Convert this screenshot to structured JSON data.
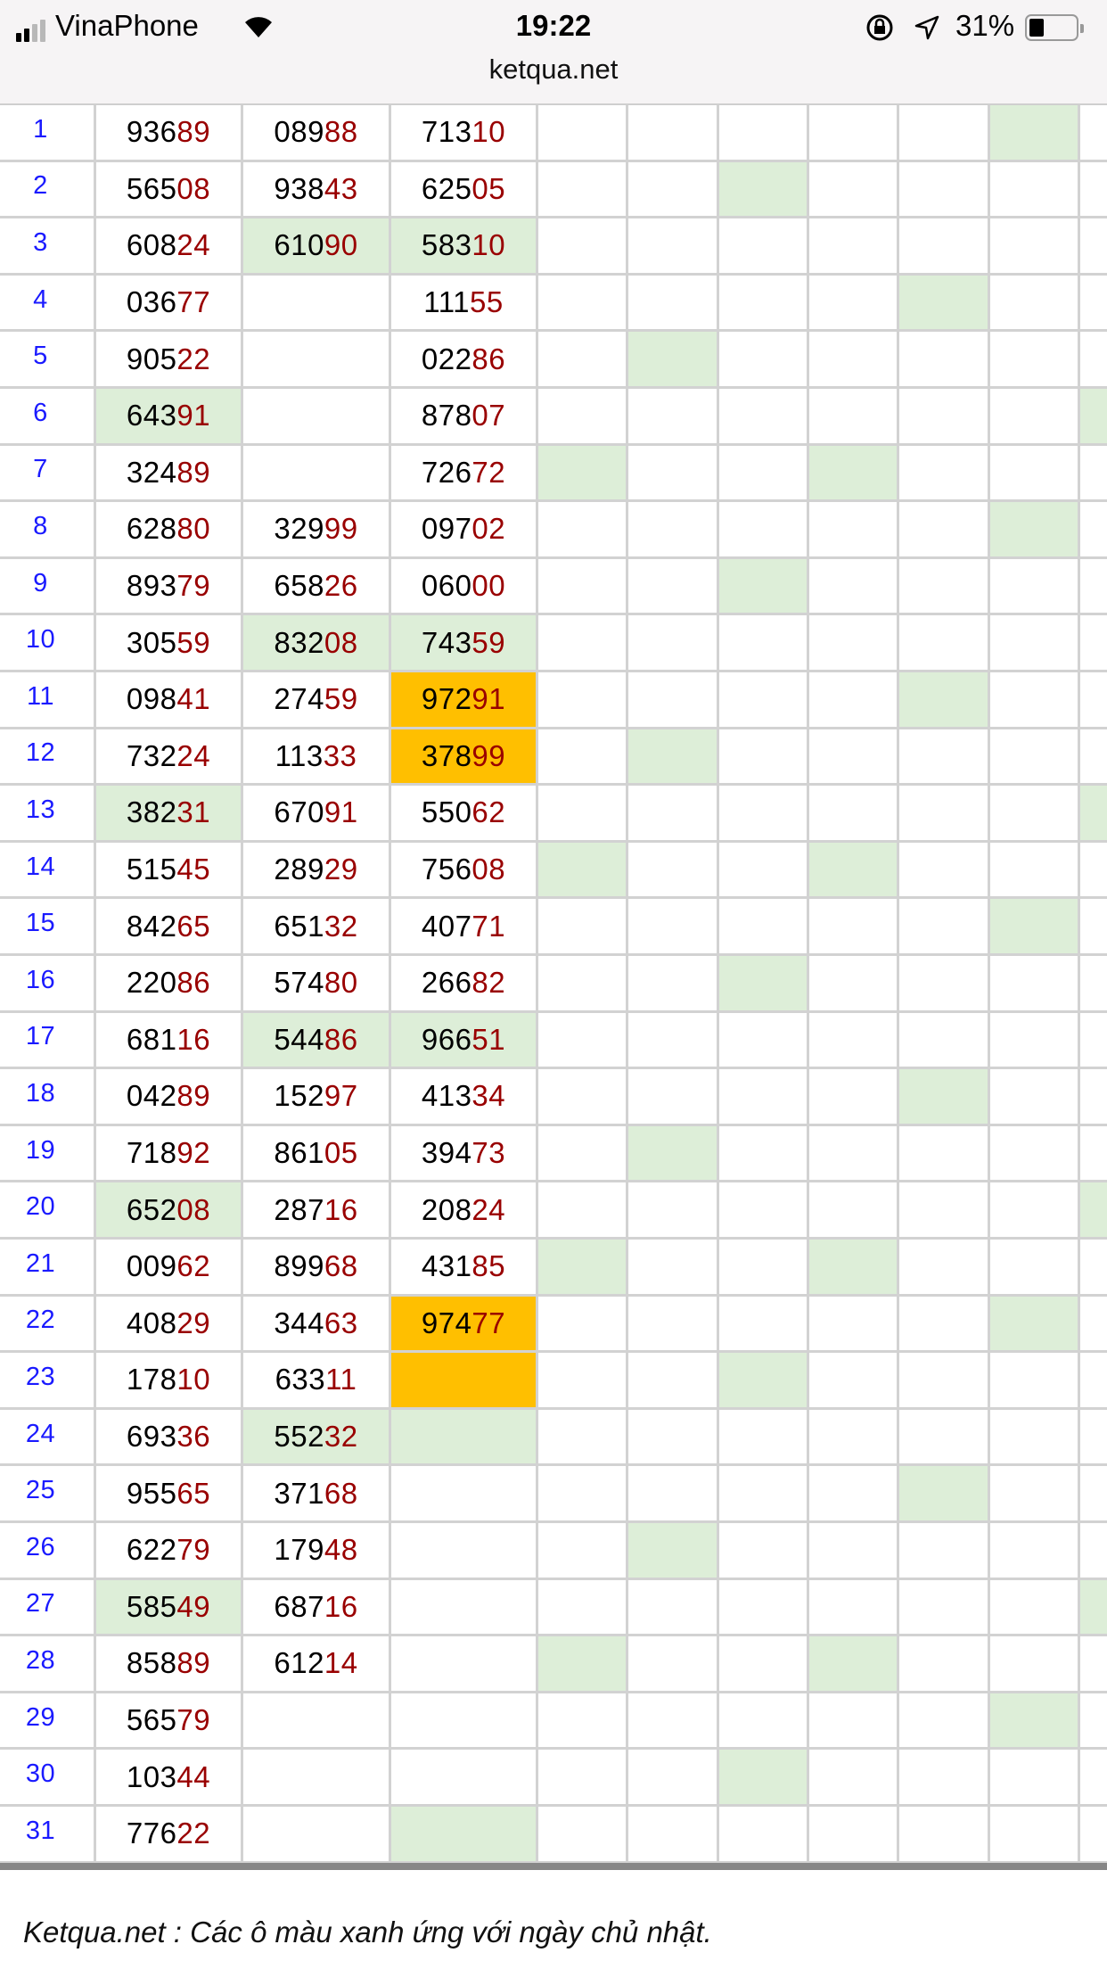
{
  "status_bar": {
    "carrier": "VinaPhone",
    "time": "19:22",
    "battery_percent": "31%",
    "battery_level": 0.31,
    "icons": [
      "signal-icon",
      "wifi-icon",
      "orientation-lock-icon",
      "location-icon",
      "battery-icon"
    ]
  },
  "browser": {
    "url": "ketqua.net"
  },
  "colors": {
    "sunday_green": "#ddeed8",
    "highlight_orange": "#ffbf00",
    "suffix_red": "#990000",
    "day_blue": "#1a1aff"
  },
  "rows": [
    {
      "day": "1",
      "nums": [
        "93689",
        "08988",
        "71310"
      ],
      "green": [
        8
      ],
      "orange": []
    },
    {
      "day": "2",
      "nums": [
        "56508",
        "93843",
        "62505"
      ],
      "green": [
        5
      ],
      "orange": []
    },
    {
      "day": "3",
      "nums": [
        "60824",
        "61090",
        "58310"
      ],
      "green": [
        1,
        2
      ],
      "orange": []
    },
    {
      "day": "4",
      "nums": [
        "03677",
        "",
        "11155"
      ],
      "green": [
        7
      ],
      "orange": []
    },
    {
      "day": "5",
      "nums": [
        "90522",
        "",
        "02286"
      ],
      "green": [
        4
      ],
      "orange": []
    },
    {
      "day": "6",
      "nums": [
        "64391",
        "",
        "87807"
      ],
      "green": [
        0,
        9
      ],
      "orange": []
    },
    {
      "day": "7",
      "nums": [
        "32489",
        "",
        "72672"
      ],
      "green": [
        3,
        6
      ],
      "orange": []
    },
    {
      "day": "8",
      "nums": [
        "62880",
        "32999",
        "09702"
      ],
      "green": [
        8
      ],
      "orange": []
    },
    {
      "day": "9",
      "nums": [
        "89379",
        "65826",
        "06000"
      ],
      "green": [
        5
      ],
      "orange": []
    },
    {
      "day": "10",
      "nums": [
        "30559",
        "83208",
        "74359"
      ],
      "green": [
        1,
        2
      ],
      "orange": []
    },
    {
      "day": "11",
      "nums": [
        "09841",
        "27459",
        "97291"
      ],
      "green": [
        7
      ],
      "orange": [
        2
      ]
    },
    {
      "day": "12",
      "nums": [
        "73224",
        "11333",
        "37899"
      ],
      "green": [
        4
      ],
      "orange": [
        2
      ]
    },
    {
      "day": "13",
      "nums": [
        "38231",
        "67091",
        "55062"
      ],
      "green": [
        0,
        9
      ],
      "orange": []
    },
    {
      "day": "14",
      "nums": [
        "51545",
        "28929",
        "75608"
      ],
      "green": [
        3,
        6
      ],
      "orange": []
    },
    {
      "day": "15",
      "nums": [
        "84265",
        "65132",
        "40771"
      ],
      "green": [
        8
      ],
      "orange": []
    },
    {
      "day": "16",
      "nums": [
        "22086",
        "57480",
        "26682"
      ],
      "green": [
        5
      ],
      "orange": []
    },
    {
      "day": "17",
      "nums": [
        "68116",
        "54486",
        "96651"
      ],
      "green": [
        1,
        2
      ],
      "orange": []
    },
    {
      "day": "18",
      "nums": [
        "04289",
        "15297",
        "41334"
      ],
      "green": [
        7
      ],
      "orange": []
    },
    {
      "day": "19",
      "nums": [
        "71892",
        "86105",
        "39473"
      ],
      "green": [
        4
      ],
      "orange": []
    },
    {
      "day": "20",
      "nums": [
        "65208",
        "28716",
        "20824"
      ],
      "green": [
        0,
        9
      ],
      "orange": []
    },
    {
      "day": "21",
      "nums": [
        "00962",
        "89968",
        "43185"
      ],
      "green": [
        3,
        6
      ],
      "orange": []
    },
    {
      "day": "22",
      "nums": [
        "40829",
        "34463",
        "97477"
      ],
      "green": [
        8
      ],
      "orange": [
        2
      ]
    },
    {
      "day": "23",
      "nums": [
        "17810",
        "63311",
        ""
      ],
      "green": [
        5
      ],
      "orange": [
        2
      ]
    },
    {
      "day": "24",
      "nums": [
        "69336",
        "55232",
        ""
      ],
      "green": [
        1,
        2
      ],
      "orange": []
    },
    {
      "day": "25",
      "nums": [
        "95565",
        "37168",
        ""
      ],
      "green": [
        7
      ],
      "orange": []
    },
    {
      "day": "26",
      "nums": [
        "62279",
        "17948",
        ""
      ],
      "green": [
        4
      ],
      "orange": []
    },
    {
      "day": "27",
      "nums": [
        "58549",
        "68716",
        ""
      ],
      "green": [
        0,
        9
      ],
      "orange": []
    },
    {
      "day": "28",
      "nums": [
        "85889",
        "61214",
        ""
      ],
      "green": [
        3,
        6
      ],
      "orange": []
    },
    {
      "day": "29",
      "nums": [
        "56579",
        "",
        ""
      ],
      "green": [
        8
      ],
      "orange": []
    },
    {
      "day": "30",
      "nums": [
        "10344",
        "",
        ""
      ],
      "green": [
        5
      ],
      "orange": []
    },
    {
      "day": "31",
      "nums": [
        "77622",
        "",
        ""
      ],
      "green": [
        2
      ],
      "orange": []
    }
  ],
  "footer": {
    "note": "Ketqua.net : Các ô màu xanh ứng với ngày chủ nhật."
  }
}
